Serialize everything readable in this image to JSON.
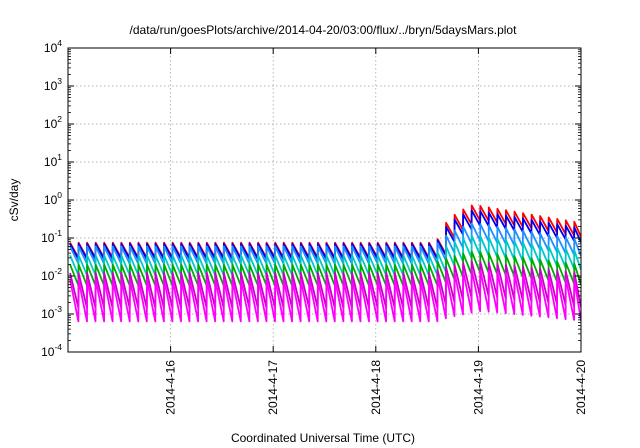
{
  "chart_data": {
    "type": "line",
    "title": "/data/run/goesPlots/archive/2014-04-20/03:00/flux/../bryn/5daysMars.plot",
    "xlabel": "Coordinated Universal Time (UTC)",
    "ylabel": "cSv/day",
    "y_scale": "log",
    "ylim": [
      0.0001,
      10000
    ],
    "y_ticks": [
      {
        "base": "10",
        "exp": "4"
      },
      {
        "base": "10",
        "exp": "3"
      },
      {
        "base": "10",
        "exp": "2"
      },
      {
        "base": "10",
        "exp": "1"
      },
      {
        "base": "10",
        "exp": "0"
      },
      {
        "base": "10",
        "exp": "-1"
      },
      {
        "base": "10",
        "exp": "-2"
      },
      {
        "base": "10",
        "exp": "-3"
      },
      {
        "base": "10",
        "exp": "-4"
      }
    ],
    "y_tick_values": [
      10000,
      1000,
      100,
      10,
      1,
      0.1,
      0.01,
      0.001,
      0.0001
    ],
    "xlim": [
      "2014-04-15 03:00",
      "2014-04-20 03:00"
    ],
    "x_ticks": [
      "2014-4-16",
      "2014-4-17",
      "2014-4-18",
      "2014-4-19",
      "2014-4-20"
    ],
    "x_tick_days": [
      1,
      2,
      3,
      4,
      5
    ],
    "grid": true,
    "sawtooth_period_days": 0.0833,
    "event_onset_day": 3.6,
    "series": [
      {
        "color": "#ff0000",
        "quiet_peak": 0.075,
        "event_peak": 0.75,
        "event_end_peak": 0.25,
        "trough_factor": 0.4
      },
      {
        "color": "#0000ee",
        "quiet_peak": 0.07,
        "event_peak": 0.55,
        "event_end_peak": 0.18,
        "trough_factor": 0.4
      },
      {
        "color": "#1e90ff",
        "quiet_peak": 0.06,
        "event_peak": 0.25,
        "event_end_peak": 0.09,
        "trough_factor": 0.35
      },
      {
        "color": "#00c8c8",
        "quiet_peak": 0.035,
        "event_peak": 0.12,
        "event_end_peak": 0.045,
        "trough_factor": 0.3
      },
      {
        "color": "#00aa00",
        "quiet_peak": 0.02,
        "event_peak": 0.045,
        "event_end_peak": 0.02,
        "trough_factor": 0.28
      },
      {
        "color": "#c800c8",
        "quiet_peak": 0.012,
        "event_peak": 0.025,
        "event_end_peak": 0.012,
        "trough_factor": 0.12
      },
      {
        "color": "#ff00ff",
        "quiet_peak": 0.008,
        "event_peak": 0.015,
        "event_end_peak": 0.008,
        "trough_factor": 0.08
      }
    ]
  }
}
